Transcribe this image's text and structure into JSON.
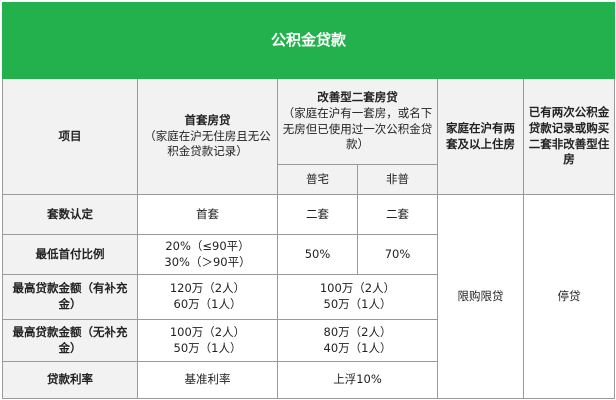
{
  "title": "公积金贷款",
  "header": {
    "item": "项目",
    "first_home": {
      "name": "首套房贷",
      "note": "（家庭在沪无住房且无公积金贷款记录）"
    },
    "improved_second": {
      "name": "改善型二套房贷",
      "note": "（家庭在沪有一套房，或名下无房但已使用过一次公积金贷款）",
      "sub_normal": "普宅",
      "sub_non_normal": "非普"
    },
    "two_plus_homes": "家庭在沪有两套及以上住房",
    "two_loans": "已有两次公积金贷款记录或购买二套非改善型住房"
  },
  "rows": {
    "count": {
      "label": "套数认定",
      "first": "首套",
      "normal": "二套",
      "non_normal": "二套"
    },
    "down_payment": {
      "label": "最低首付比例",
      "first_line1": "20%（≤90平）",
      "first_line2": "30%（＞90平）",
      "normal": "50%",
      "non_normal": "70%"
    },
    "max_loan_supp": {
      "label": "最高贷款金额（有补充金）",
      "first_line1": "120万（2人）",
      "first_line2": "60万（1人）",
      "second_line1": "100万（2人）",
      "second_line2": "50万（1人）"
    },
    "max_loan_nosupp": {
      "label": "最高贷款金额（无补充金）",
      "first_line1": "100万（2人）",
      "first_line2": "50万（1人）",
      "second_line1": "80万（2人）",
      "second_line2": "40万（1人）"
    },
    "rate": {
      "label": "贷款利率",
      "first": "基准利率",
      "second": "上浮10%"
    }
  },
  "restricted": "限购限贷",
  "stopped": "停贷"
}
